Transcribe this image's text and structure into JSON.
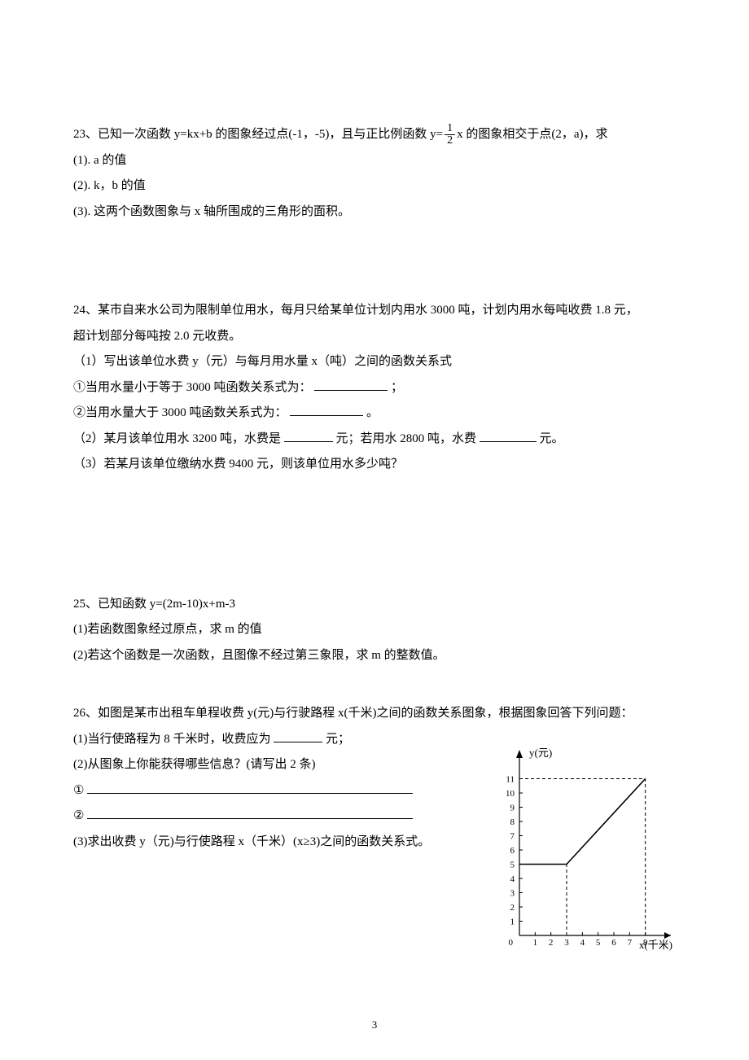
{
  "page_number": "3",
  "q23": {
    "stem_a": "23、已知一次函数 y=kx+b 的图象经过点(-1，-5)，且与正比例函数 y=",
    "frac_num": "1",
    "frac_den": "2",
    "stem_b": "x 的图象相交于点(2，a)，求",
    "p1": "(1). a 的值",
    "p2": "(2). k，b 的值",
    "p3": "(3). 这两个函数图象与 x 轴所围成的三角形的面积。"
  },
  "q24": {
    "l1": "24、某市自来水公司为限制单位用水，每月只给某单位计划内用水 3000 吨，计划内用水每吨收费 1.8 元，",
    "l2": "超计划部分每吨按 2.0 元收费。",
    "l3": "（1）写出该单位水费 y（元）与每月用水量 x（吨）之间的函数关系式",
    "l4_a": "①当用水量小于等于 3000 吨函数关系式为：",
    "l4_b": "；",
    "l5_a": "②当用水量大于 3000 吨函数关系式为：",
    "l5_b": "。",
    "l6_a": "（2）某月该单位用水 3200 吨，水费是",
    "l6_b": "元；若用水 2800 吨，水费",
    "l6_c": "元。",
    "l7": "（3）若某月该单位缴纳水费 9400 元，则该单位用水多少吨？"
  },
  "q25": {
    "l1": "25、已知函数 y=(2m-10)x+m-3",
    "l2": "(1)若函数图象经过原点，求 m 的值",
    "l3": "(2)若这个函数是一次函数，且图像不经过第三象限，求 m 的整数值。"
  },
  "q26": {
    "l1": "26、如图是某市出租车单程收费 y(元)与行驶路程 x(千米)之间的函数关系图象，根据图象回答下列问题：",
    "l2_a": "(1)当行使路程为 8 千米时，收费应为",
    "l2_b": "元；",
    "l3": "(2)从图象上你能获得哪些信息？(请写出 2 条)",
    "circ1": "①",
    "circ2": "②",
    "l6": "(3)求出收费 y（元)与行使路程 x（千米）(x≥3)之间的函数关系式。"
  },
  "chart": {
    "type": "line",
    "y_label": "y(元)",
    "x_label": "x(千米)",
    "origin_label": "0",
    "x_ticks": [
      1,
      2,
      3,
      4,
      5,
      6,
      7,
      8
    ],
    "y_ticks": [
      1,
      2,
      3,
      4,
      5,
      6,
      7,
      8,
      9,
      10,
      11
    ],
    "xlim": [
      0,
      9
    ],
    "ylim": [
      0,
      12
    ],
    "segments": [
      {
        "from": [
          0,
          5
        ],
        "to": [
          3,
          5
        ]
      },
      {
        "from": [
          3,
          5
        ],
        "to": [
          8,
          11
        ]
      }
    ],
    "dashed": [
      {
        "from": [
          0,
          11
        ],
        "to": [
          8,
          11
        ]
      },
      {
        "from": [
          8,
          0
        ],
        "to": [
          8,
          11
        ]
      },
      {
        "from": [
          3,
          0
        ],
        "to": [
          3,
          5
        ]
      }
    ],
    "axis_color": "#000000",
    "background_color": "#ffffff",
    "tick_fontsize": 11,
    "label_fontsize": 13,
    "line_width": 1.6
  }
}
